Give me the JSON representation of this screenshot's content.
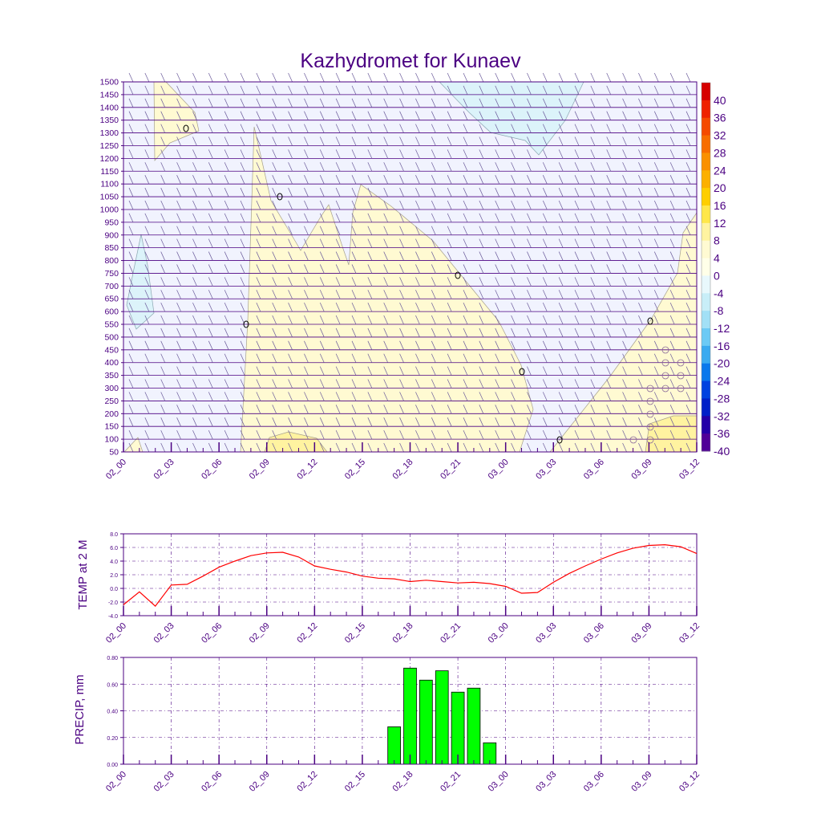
{
  "colors": {
    "axis": "#4b0082",
    "text": "#4b0082",
    "temp_line": "#ff0000",
    "precip_bar": "#00ff00",
    "grid": "#4b0082"
  },
  "chart_data": [
    {
      "type": "heatmap",
      "title": "Kazhydromet for Kunaev",
      "x_tick_labels": [
        "02_00",
        "02_03",
        "02_06",
        "02_09",
        "02_12",
        "02_15",
        "02_18",
        "02_21",
        "03_00",
        "03_03",
        "03_06",
        "03_09",
        "03_12"
      ],
      "y_tick_labels": [
        "1500",
        "1450",
        "1400",
        "1350",
        "1300",
        "1250",
        "1200",
        "1150",
        "1100",
        "1050",
        "1000",
        "950",
        "900",
        "850",
        "800",
        "750",
        "700",
        "650",
        "600",
        "550",
        "500",
        "450",
        "400",
        "350",
        "300",
        "250",
        "200",
        "150",
        "100",
        "50"
      ],
      "ylim": [
        50,
        1500
      ],
      "colorbar": {
        "labels": [
          "40",
          "36",
          "32",
          "28",
          "24",
          "20",
          "16",
          "12",
          "8",
          "4",
          "0",
          "-4",
          "-8",
          "-12",
          "-16",
          "-20",
          "-24",
          "-28",
          "-32",
          "-36",
          "-40"
        ],
        "colors": [
          "#d60000",
          "#ef2100",
          "#f54a00",
          "#f86d00",
          "#fa9000",
          "#fcb000",
          "#fece00",
          "#ffe74a",
          "#fff3a0",
          "#fffad2",
          "#ffffe8",
          "#e8f8fc",
          "#c8eef8",
          "#a2e0f6",
          "#6ccaf5",
          "#3aaaf0",
          "#0a78ec",
          "#0042e0",
          "#0020c8",
          "#2400a8",
          "#500098"
        ]
      },
      "contour_labels": [
        "0",
        "0",
        "0",
        "0",
        "0",
        "0",
        "0",
        "0"
      ]
    },
    {
      "type": "line",
      "ylabel": "TEMP at 2 M",
      "y_tick_labels": [
        "8.0",
        "6.0",
        "4.0",
        "2.0",
        "0.0",
        "-2.0",
        "-4.0"
      ],
      "ylim": [
        -4,
        8
      ],
      "x_tick_labels": [
        "02_00",
        "02_03",
        "02_06",
        "02_09",
        "02_12",
        "02_15",
        "02_18",
        "02_21",
        "03_00",
        "03_03",
        "03_06",
        "03_09",
        "03_12"
      ],
      "series": [
        {
          "x_hours": [
            0,
            1,
            2,
            3,
            4,
            5,
            6,
            7,
            8,
            9,
            10,
            11,
            12,
            13,
            14,
            15,
            16,
            17,
            18,
            19,
            20,
            21,
            22,
            23,
            24,
            25,
            26,
            27,
            28,
            29,
            30,
            31,
            32,
            33,
            34,
            35,
            36
          ],
          "values": [
            -2.4,
            -0.5,
            -2.6,
            0.5,
            0.6,
            1.8,
            3.1,
            4.0,
            4.8,
            5.2,
            5.3,
            4.6,
            3.3,
            2.8,
            2.4,
            1.8,
            1.5,
            1.4,
            1.0,
            1.2,
            1.0,
            0.8,
            0.9,
            0.7,
            0.3,
            -0.7,
            -0.6,
            0.9,
            2.2,
            3.3,
            4.3,
            5.2,
            5.9,
            6.3,
            6.4,
            6.1,
            5.1
          ]
        }
      ]
    },
    {
      "type": "bar",
      "ylabel": "PRECIP, mm",
      "y_tick_labels": [
        "0.80",
        "0.60",
        "0.40",
        "0.20",
        "0.00"
      ],
      "ylim": [
        0,
        0.8
      ],
      "x_tick_labels": [
        "02_00",
        "02_03",
        "02_06",
        "02_09",
        "02_12",
        "02_15",
        "02_18",
        "02_21",
        "03_00",
        "03_03",
        "03_06",
        "03_09",
        "03_12"
      ],
      "bars": [
        {
          "x_hour": 17,
          "value": 0.28
        },
        {
          "x_hour": 18,
          "value": 0.72
        },
        {
          "x_hour": 19,
          "value": 0.63
        },
        {
          "x_hour": 20,
          "value": 0.7
        },
        {
          "x_hour": 21,
          "value": 0.54
        },
        {
          "x_hour": 22,
          "value": 0.57
        },
        {
          "x_hour": 23,
          "value": 0.16
        }
      ]
    }
  ]
}
